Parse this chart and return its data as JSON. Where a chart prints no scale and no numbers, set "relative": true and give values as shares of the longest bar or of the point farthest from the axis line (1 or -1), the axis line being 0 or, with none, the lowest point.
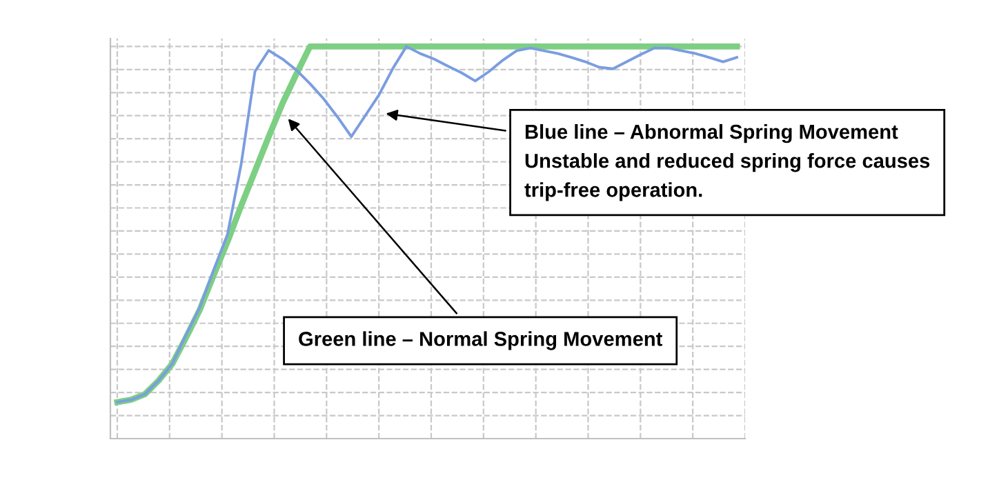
{
  "chart_data": {
    "type": "line",
    "relative": true,
    "grid": true,
    "marker": "none",
    "line_style": "solid",
    "categories": [
      null,
      null,
      null,
      null,
      null,
      null,
      null,
      null,
      null,
      null,
      null,
      null,
      null,
      null,
      null,
      null,
      null,
      null,
      null,
      null,
      null,
      null,
      null,
      null,
      null,
      null,
      null,
      null,
      null,
      null,
      null,
      null,
      null,
      null,
      null,
      null,
      null,
      null,
      null,
      null,
      null,
      null,
      null,
      null,
      null,
      null
    ],
    "series": [
      {
        "color": "#7dcf84",
        "values": [
          0.093,
          0.099,
          0.113,
          0.148,
          0.191,
          0.258,
          0.329,
          0.417,
          0.502,
          0.594,
          0.682,
          0.77,
          0.855,
          0.929,
          1.0,
          1.0,
          1.0,
          1.0,
          1.0,
          1.0,
          1.0,
          1.0,
          1.0,
          1.0,
          1.0,
          1.0,
          1.0,
          1.0,
          1.0,
          1.0,
          1.0,
          1.0,
          1.0,
          1.0,
          1.0,
          1.0,
          1.0,
          1.0,
          1.0,
          1.0,
          1.0,
          1.0,
          1.0,
          1.0,
          1.0,
          1.0
        ]
      },
      {
        "color": "#7b9de0",
        "values": [
          0.093,
          0.099,
          0.113,
          0.148,
          0.191,
          0.265,
          0.335,
          0.43,
          0.52,
          0.7,
          0.936,
          0.99,
          0.968,
          0.94,
          0.905,
          0.866,
          0.82,
          0.77,
          0.823,
          0.876,
          0.943,
          1.0,
          0.982,
          0.968,
          0.95,
          0.933,
          0.912,
          0.936,
          0.965,
          0.989,
          0.996,
          0.989,
          0.982,
          0.972,
          0.961,
          0.947,
          0.943,
          0.961,
          0.979,
          0.996,
          0.996,
          0.989,
          0.982,
          0.972,
          0.961,
          0.972
        ]
      }
    ],
    "annotations": [
      "Blue line – Abnormal Spring Movement\nUnstable and reduced spring force causes\ntrip-free operation.",
      "Green line – Normal Spring Movement"
    ]
  }
}
